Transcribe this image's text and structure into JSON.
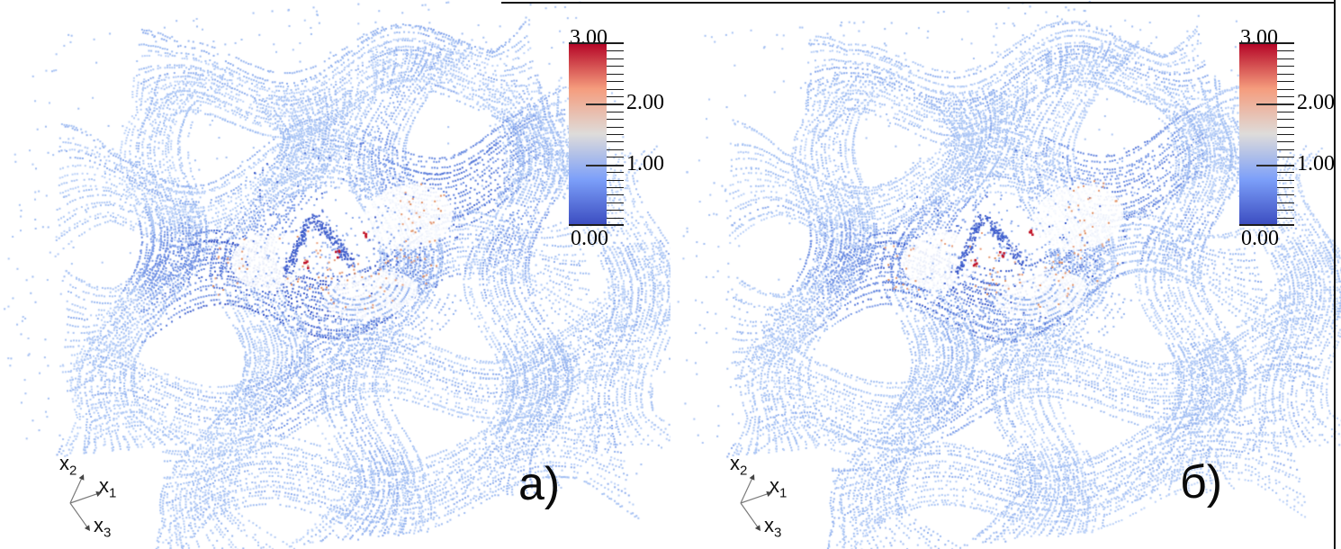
{
  "figure": {
    "background": "#ffffff",
    "panels": [
      {
        "id": "a",
        "label": "а)",
        "seed": 20231,
        "anomaly": 1.0,
        "red_spots": [
          [
            342,
            290
          ],
          [
            379,
            282
          ],
          [
            413,
            262
          ]
        ]
      },
      {
        "id": "b",
        "label": "б)",
        "seed": 77043,
        "anomaly": 0.85,
        "red_spots": [
          [
            341,
            288
          ],
          [
            372,
            281
          ],
          [
            408,
            259
          ]
        ]
      }
    ],
    "colorbar": {
      "orientation": "vertical",
      "range": [
        0.0,
        3.0
      ],
      "labels": [
        "3.00",
        "2.00",
        "1.00",
        "0.00"
      ],
      "labeled_values": [
        3.0,
        2.0,
        1.0,
        0.0
      ],
      "minor_tick_count": 25,
      "colormap_name": "cool-to-warm",
      "gradient_stops": [
        {
          "t": 0.0,
          "color": "#3b4cc0"
        },
        {
          "t": 0.25,
          "color": "#7c9ff9"
        },
        {
          "t": 0.5,
          "color": "#dedcda"
        },
        {
          "t": 0.75,
          "color": "#f59c7d"
        },
        {
          "t": 1.0,
          "color": "#b40426"
        }
      ]
    },
    "axes_triad": {
      "x1": {
        "base": "x",
        "sub": "1"
      },
      "x2": {
        "base": "x",
        "sub": "2"
      },
      "x3": {
        "base": "x",
        "sub": "3"
      }
    },
    "palette": {
      "light": "#9cbaf1",
      "lighter": "#bcd2f8",
      "medium": "#7e9ee9",
      "dark": "#5577d8",
      "vdark": "#2e4cc4",
      "salmon": "#eaa383",
      "orange": "#dd8857",
      "red": "#c11226"
    }
  },
  "chart_data": {
    "type": "scatter",
    "subtype": "3d-point-cloud-pair",
    "title": "",
    "panels": [
      {
        "label": "а)",
        "content": "3D point cloud of a plain-weave fabric unit cell colored by a scalar field"
      },
      {
        "label": "б)",
        "content": "3D point cloud of the same woven unit cell, second case, colored by the same scalar field"
      }
    ],
    "colorbar": {
      "min": 0.0,
      "max": 3.0,
      "labeled_ticks": [
        3.0,
        2.0,
        1.0,
        0.0
      ],
      "tick_label_format": "x.00",
      "colormap": "cool-to-warm (blue - white - red)"
    },
    "axis_labels": [
      "x1",
      "x2",
      "x3"
    ],
    "legend_position": "top-right of each panel",
    "value_notes": "Bulk of the points sit near 0.8-1.1 (light periwinkle blue); localized lows near 0-0.3 (dark blue clusters) and highs near 2-3 (salmon and red specks) concentrated at the specimen center; sparse light-blue noise points scattered above the fabric."
  }
}
